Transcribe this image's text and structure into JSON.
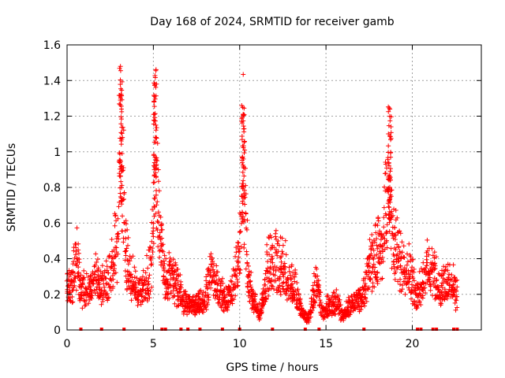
{
  "chart_data": {
    "type": "scatter",
    "title": "Day 168 of 2024, SRMTID for receiver gamb",
    "xlabel": "GPS time / hours",
    "ylabel": "SRMTID / TECUs",
    "xlim": [
      0,
      24
    ],
    "ylim": [
      0,
      1.6
    ],
    "grid": true,
    "xticks": [
      0,
      5,
      10,
      15,
      20
    ],
    "xtick_labels": [
      "0",
      "5",
      "10",
      "15",
      "20"
    ],
    "yticks": [
      0,
      0.2,
      0.4,
      0.6,
      0.8,
      1.0,
      1.2,
      1.4,
      1.6
    ],
    "ytick_labels": [
      "0",
      "0.2",
      "0.4",
      "0.6",
      "0.8",
      "1",
      "1.2",
      "1.4",
      "1.6"
    ],
    "series": [
      {
        "name": "SRMTID",
        "marker": "+",
        "color": "#ff0000",
        "profile_points": [
          [
            0.0,
            0.3
          ],
          [
            0.3,
            0.32
          ],
          [
            0.5,
            0.55
          ],
          [
            0.8,
            0.3
          ],
          [
            1.2,
            0.28
          ],
          [
            1.6,
            0.38
          ],
          [
            1.9,
            0.3
          ],
          [
            2.2,
            0.35
          ],
          [
            2.6,
            0.48
          ],
          [
            2.9,
            0.6
          ],
          [
            3.1,
            1.45
          ],
          [
            3.4,
            0.55
          ],
          [
            3.7,
            0.4
          ],
          [
            4.0,
            0.3
          ],
          [
            4.3,
            0.28
          ],
          [
            4.6,
            0.35
          ],
          [
            4.9,
            0.45
          ],
          [
            5.1,
            1.4
          ],
          [
            5.4,
            0.7
          ],
          [
            5.7,
            0.35
          ],
          [
            6.0,
            0.45
          ],
          [
            6.4,
            0.3
          ],
          [
            6.8,
            0.2
          ],
          [
            7.2,
            0.18
          ],
          [
            7.6,
            0.18
          ],
          [
            8.0,
            0.22
          ],
          [
            8.4,
            0.45
          ],
          [
            8.7,
            0.3
          ],
          [
            9.0,
            0.25
          ],
          [
            9.3,
            0.22
          ],
          [
            9.7,
            0.35
          ],
          [
            10.0,
            0.6
          ],
          [
            10.2,
            1.2
          ],
          [
            10.5,
            0.35
          ],
          [
            10.8,
            0.2
          ],
          [
            11.2,
            0.12
          ],
          [
            11.6,
            0.45
          ],
          [
            12.0,
            0.5
          ],
          [
            12.4,
            0.45
          ],
          [
            12.8,
            0.4
          ],
          [
            13.2,
            0.3
          ],
          [
            13.6,
            0.12
          ],
          [
            14.0,
            0.08
          ],
          [
            14.4,
            0.35
          ],
          [
            14.8,
            0.12
          ],
          [
            15.2,
            0.18
          ],
          [
            15.6,
            0.2
          ],
          [
            16.0,
            0.1
          ],
          [
            16.4,
            0.2
          ],
          [
            16.8,
            0.22
          ],
          [
            17.2,
            0.25
          ],
          [
            17.5,
            0.45
          ],
          [
            17.8,
            0.55
          ],
          [
            18.1,
            0.6
          ],
          [
            18.4,
            0.75
          ],
          [
            18.7,
            1.2
          ],
          [
            18.9,
            0.6
          ],
          [
            19.2,
            0.55
          ],
          [
            19.5,
            0.45
          ],
          [
            19.8,
            0.45
          ],
          [
            20.2,
            0.25
          ],
          [
            20.6,
            0.35
          ],
          [
            20.9,
            0.48
          ],
          [
            21.3,
            0.4
          ],
          [
            21.6,
            0.3
          ],
          [
            21.9,
            0.3
          ],
          [
            22.2,
            0.35
          ],
          [
            22.6,
            0.25
          ]
        ],
        "zero_points_x": [
          0.8,
          2.0,
          3.3,
          5.5,
          5.7,
          6.6,
          7.0,
          7.7,
          9.0,
          10.0,
          11.9,
          13.8,
          14.6,
          17.2,
          20.3,
          20.5,
          21.2,
          21.4,
          22.4,
          22.6
        ]
      }
    ]
  }
}
